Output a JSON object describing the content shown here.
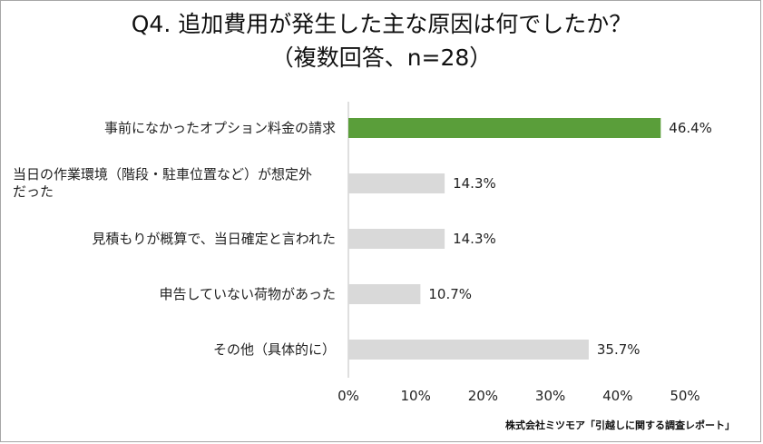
{
  "chart_data": {
    "type": "bar",
    "orientation": "horizontal",
    "title": "Q4.  追加費用が発生した主な原因は何でしたか？",
    "subtitle": "（複数回答、n=28）",
    "categories": [
      [
        "事前になかったオプション料金の請求"
      ],
      [
        "当日の作業環境（階段・駐車位置など）が想定外",
        "だった"
      ],
      [
        "見積もりが概算で、当日確定と言われた"
      ],
      [
        "申告していない荷物があった"
      ],
      [
        "その他（具体的に）"
      ]
    ],
    "values": [
      46.4,
      14.3,
      14.3,
      10.7,
      35.7
    ],
    "value_labels": [
      "46.4%",
      "14.3%",
      "14.3%",
      "10.7%",
      "35.7%"
    ],
    "highlight_index": 0,
    "xlim": [
      0,
      50
    ],
    "xticks": [
      0,
      10,
      20,
      30,
      40,
      50
    ],
    "xtick_labels": [
      "0%",
      "10%",
      "20%",
      "30%",
      "40%",
      "50%"
    ],
    "grid": false,
    "legend": "none",
    "colors": {
      "highlight": "#5a9e3a",
      "default": "#d9d9d9",
      "axis": "#bfbfbf",
      "text": "#222222"
    }
  },
  "source": "株式会社ミツモア「引越しに関する調査レポート」"
}
